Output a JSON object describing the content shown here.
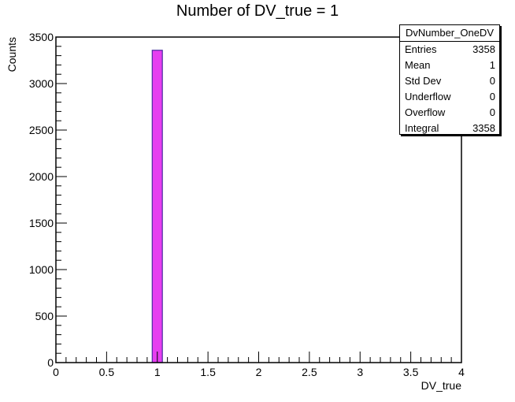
{
  "chart_data": {
    "type": "bar",
    "title": "Number of DV_true = 1",
    "xlabel": "DV_true",
    "ylabel": "Counts",
    "xlim": [
      0,
      4
    ],
    "ylim": [
      0,
      3500
    ],
    "x_ticks": [
      0,
      0.5,
      1,
      1.5,
      2,
      2.5,
      3,
      3.5,
      4
    ],
    "x_tick_labels": [
      "0",
      "0.5",
      "1",
      "1.5",
      "2",
      "2.5",
      "3",
      "3.5",
      "4"
    ],
    "y_ticks": [
      0,
      500,
      1000,
      1500,
      2000,
      2500,
      3000,
      3500
    ],
    "y_tick_labels": [
      "0",
      "500",
      "1000",
      "1500",
      "2000",
      "2500",
      "3000",
      "3500"
    ],
    "bars": [
      {
        "x_low": 0.95,
        "x_high": 1.05,
        "value": 3358
      }
    ],
    "bar_fill": "#e63ef0",
    "bar_edge": "#4a2aa0",
    "grid": false,
    "legend": "none"
  },
  "stats": {
    "title": "DvNumber_OneDV",
    "rows": [
      {
        "label": "Entries",
        "value": "3358"
      },
      {
        "label": "Mean",
        "value": "1"
      },
      {
        "label": "Std Dev",
        "value": "0"
      },
      {
        "label": "Underflow",
        "value": "0"
      },
      {
        "label": "Overflow",
        "value": "0"
      },
      {
        "label": "Integral",
        "value": "3358"
      }
    ]
  }
}
